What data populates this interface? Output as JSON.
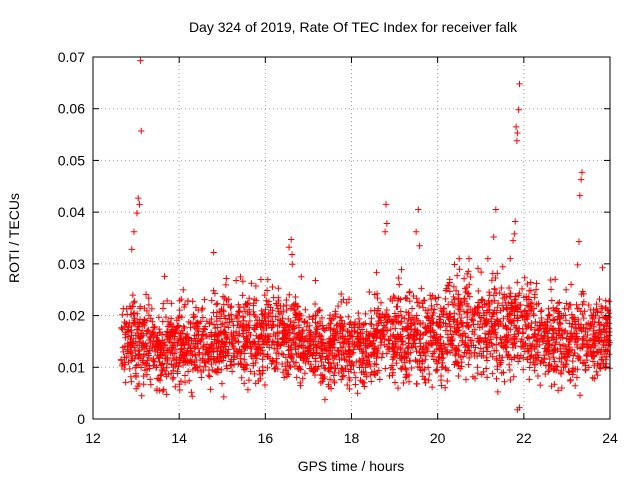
{
  "chart_data": {
    "type": "scatter",
    "title": "Day 324 of 2019, Rate Of TEC Index for receiver falk",
    "xlabel": "GPS time / hours",
    "ylabel": "ROTI / TECUs",
    "xlim": [
      12,
      24
    ],
    "ylim": [
      0,
      0.07
    ],
    "xticks": [
      12,
      14,
      16,
      18,
      20,
      22,
      24
    ],
    "xtick_labels": [
      "12",
      "14",
      "16",
      "18",
      "20",
      "22",
      "24"
    ],
    "yticks": [
      0,
      0.01,
      0.02,
      0.03,
      0.04,
      0.05,
      0.06,
      0.07
    ],
    "ytick_labels": [
      "0",
      "0.01",
      "0.02",
      "0.03",
      "0.04",
      "0.05",
      "0.06",
      "0.07"
    ],
    "grid": true,
    "marker": "+",
    "color": "#ff0000",
    "x_start": 12.65,
    "x_end": 24.0,
    "notes": "Dense cloud of ROTI samples mostly between 0.003 and 0.025 TECU/s; spikes listed below.",
    "spikes": [
      {
        "x": 13.1,
        "y": 0.0693
      },
      {
        "x": 13.12,
        "y": 0.0557
      },
      {
        "x": 13.05,
        "y": 0.0427
      },
      {
        "x": 13.08,
        "y": 0.0415
      },
      {
        "x": 13.02,
        "y": 0.0398
      },
      {
        "x": 12.95,
        "y": 0.0362
      },
      {
        "x": 12.9,
        "y": 0.0328
      },
      {
        "x": 14.8,
        "y": 0.0322
      },
      {
        "x": 16.6,
        "y": 0.0347
      },
      {
        "x": 16.55,
        "y": 0.0332
      },
      {
        "x": 16.62,
        "y": 0.0318
      },
      {
        "x": 18.8,
        "y": 0.0415
      },
      {
        "x": 18.82,
        "y": 0.0378
      },
      {
        "x": 18.78,
        "y": 0.0362
      },
      {
        "x": 19.55,
        "y": 0.0405
      },
      {
        "x": 19.5,
        "y": 0.0362
      },
      {
        "x": 19.58,
        "y": 0.0335
      },
      {
        "x": 21.35,
        "y": 0.0405
      },
      {
        "x": 21.3,
        "y": 0.0352
      },
      {
        "x": 21.9,
        "y": 0.0648
      },
      {
        "x": 21.88,
        "y": 0.0598
      },
      {
        "x": 21.82,
        "y": 0.0565
      },
      {
        "x": 21.85,
        "y": 0.0553
      },
      {
        "x": 21.84,
        "y": 0.0538
      },
      {
        "x": 21.8,
        "y": 0.0382
      },
      {
        "x": 21.78,
        "y": 0.0358
      },
      {
        "x": 21.75,
        "y": 0.0345
      },
      {
        "x": 23.35,
        "y": 0.0477
      },
      {
        "x": 23.33,
        "y": 0.0463
      },
      {
        "x": 23.3,
        "y": 0.0432
      },
      {
        "x": 23.28,
        "y": 0.0343
      },
      {
        "x": 23.25,
        "y": 0.0298
      },
      {
        "x": 21.85,
        "y": 0.0018
      },
      {
        "x": 21.9,
        "y": 0.0022
      }
    ],
    "segments": [
      {
        "x0": 12.65,
        "x1": 13.2,
        "base": 0.011,
        "spread": 0.012
      },
      {
        "x0": 13.2,
        "x1": 15.0,
        "base": 0.01,
        "spread": 0.011
      },
      {
        "x0": 15.0,
        "x1": 16.8,
        "base": 0.011,
        "spread": 0.014
      },
      {
        "x0": 16.8,
        "x1": 18.5,
        "base": 0.01,
        "spread": 0.011
      },
      {
        "x0": 18.5,
        "x1": 20.2,
        "base": 0.011,
        "spread": 0.013
      },
      {
        "x0": 20.2,
        "x1": 22.2,
        "base": 0.012,
        "spread": 0.016
      },
      {
        "x0": 22.2,
        "x1": 24.0,
        "base": 0.011,
        "spread": 0.013
      }
    ]
  }
}
